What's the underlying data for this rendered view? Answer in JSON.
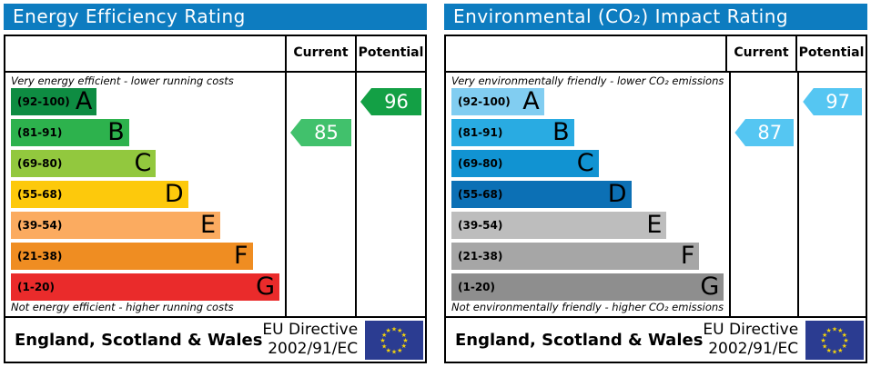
{
  "chart_data": [
    {
      "type": "bar",
      "title": "Energy Efficiency Rating",
      "columns": {
        "current": "Current",
        "potential": "Potential"
      },
      "top_caption": "Very energy efficient - lower running costs",
      "bottom_caption": "Not energy efficient - higher running costs",
      "bands": [
        {
          "letter": "A",
          "range": "(92-100)",
          "color": "#0e8c42",
          "width_pct": 32
        },
        {
          "letter": "B",
          "range": "(81-91)",
          "color": "#2db24d",
          "width_pct": 44
        },
        {
          "letter": "C",
          "range": "(69-80)",
          "color": "#92c83e",
          "width_pct": 54
        },
        {
          "letter": "D",
          "range": "(55-68)",
          "color": "#fdc90c",
          "width_pct": 66
        },
        {
          "letter": "E",
          "range": "(39-54)",
          "color": "#fbab60",
          "width_pct": 78
        },
        {
          "letter": "F",
          "range": "(21-38)",
          "color": "#ef8d22",
          "width_pct": 90
        },
        {
          "letter": "G",
          "range": "(1-20)",
          "color": "#ea2b2b",
          "width_pct": 100
        }
      ],
      "current": {
        "value": "85",
        "band": "B",
        "band_index": 1,
        "color": "#41c16c"
      },
      "potential": {
        "value": "96",
        "band": "A",
        "band_index": 0,
        "color": "#13a045"
      },
      "footer": {
        "region": "England, Scotland & Wales",
        "directive_line1": "EU Directive",
        "directive_line2": "2002/91/EC"
      }
    },
    {
      "type": "bar",
      "title": "Environmental (CO₂) Impact Rating",
      "columns": {
        "current": "Current",
        "potential": "Potential"
      },
      "top_caption": "Very environmentally friendly - lower CO₂ emissions",
      "bottom_caption": "Not environmentally friendly - higher CO₂ emissions",
      "bands": [
        {
          "letter": "A",
          "range": "(92-100)",
          "color": "#81cdf1",
          "width_pct": 34
        },
        {
          "letter": "B",
          "range": "(81-91)",
          "color": "#29abe2",
          "width_pct": 45
        },
        {
          "letter": "C",
          "range": "(69-80)",
          "color": "#1193d2",
          "width_pct": 54
        },
        {
          "letter": "D",
          "range": "(55-68)",
          "color": "#0c70b5",
          "width_pct": 66
        },
        {
          "letter": "E",
          "range": "(39-54)",
          "color": "#bdbdbd",
          "width_pct": 79
        },
        {
          "letter": "F",
          "range": "(21-38)",
          "color": "#a6a6a6",
          "width_pct": 91
        },
        {
          "letter": "G",
          "range": "(1-20)",
          "color": "#8e8e8e",
          "width_pct": 100
        }
      ],
      "current": {
        "value": "87",
        "band": "B",
        "band_index": 1,
        "color": "#55c6f2"
      },
      "potential": {
        "value": "97",
        "band": "A",
        "band_index": 0,
        "color": "#55c6f2"
      },
      "footer": {
        "region": "England, Scotland & Wales",
        "directive_line1": "EU Directive",
        "directive_line2": "2002/91/EC"
      }
    }
  ],
  "colors": {
    "header_bg": "#0d7cc0",
    "flag_bg": "#2b3c91",
    "flag_stars": "#f2d20c"
  }
}
